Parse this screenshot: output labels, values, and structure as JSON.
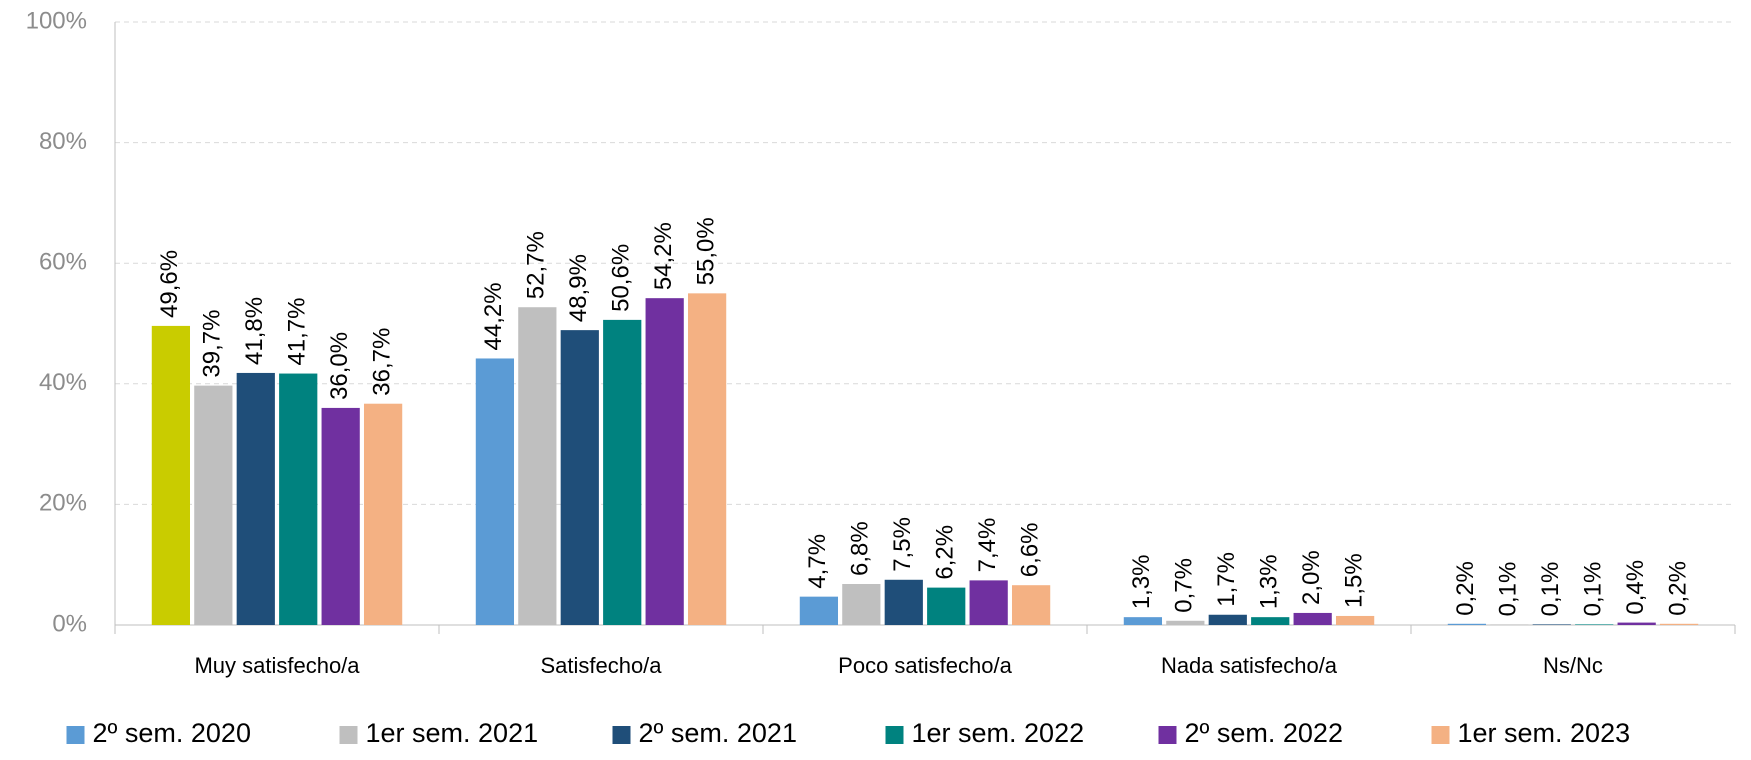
{
  "chart_data": {
    "type": "bar",
    "categories": [
      "Muy satisfecho/a",
      "Satisfecho/a",
      "Poco satisfecho/a",
      "Nada satisfecho/a",
      "Ns/Nc"
    ],
    "series": [
      {
        "name": "2º sem. 2020",
        "color": "#5b9bd5",
        "point_colors": [
          "#c9cc00",
          null,
          null,
          null,
          null
        ],
        "values": [
          49.6,
          44.2,
          4.7,
          1.3,
          0.2
        ],
        "value_labels": [
          "49,6%",
          "44,2%",
          "4,7%",
          "1,3%",
          "0,2%"
        ]
      },
      {
        "name": "1er sem. 2021",
        "color": "#bfbfbf",
        "values": [
          39.7,
          52.7,
          6.8,
          0.7,
          0.1
        ],
        "value_labels": [
          "39,7%",
          "52,7%",
          "6,8%",
          "0,7%",
          "0,1%"
        ]
      },
      {
        "name": "2º sem. 2021",
        "color": "#1f4e79",
        "values": [
          41.8,
          48.9,
          7.5,
          1.7,
          0.1
        ],
        "value_labels": [
          "41,8%",
          "48,9%",
          "7,5%",
          "1,7%",
          "0,1%"
        ]
      },
      {
        "name": "1er sem. 2022",
        "color": "#00827f",
        "values": [
          41.7,
          50.6,
          6.2,
          1.3,
          0.1
        ],
        "value_labels": [
          "41,7%",
          "50,6%",
          "6,2%",
          "1,3%",
          "0,1%"
        ]
      },
      {
        "name": "2º sem. 2022",
        "color": "#7030a0",
        "values": [
          36.0,
          54.2,
          7.4,
          2.0,
          0.4
        ],
        "value_labels": [
          "36,0%",
          "54,2%",
          "7,4%",
          "2,0%",
          "0,4%"
        ]
      },
      {
        "name": "1er sem. 2023",
        "color": "#f4b183",
        "values": [
          36.7,
          55.0,
          6.6,
          1.5,
          0.2
        ],
        "value_labels": [
          "36,7%",
          "55,0%",
          "6,6%",
          "1,5%",
          "0,2%"
        ]
      }
    ],
    "ylim": [
      0,
      100
    ],
    "yticks": [
      {
        "value": 0,
        "label": "0%"
      },
      {
        "value": 20,
        "label": "20%"
      },
      {
        "value": 40,
        "label": "40%"
      },
      {
        "value": 60,
        "label": "60%"
      },
      {
        "value": 80,
        "label": "80%"
      },
      {
        "value": 100,
        "label": "100%"
      }
    ],
    "grid": true,
    "legend": "bottom"
  }
}
